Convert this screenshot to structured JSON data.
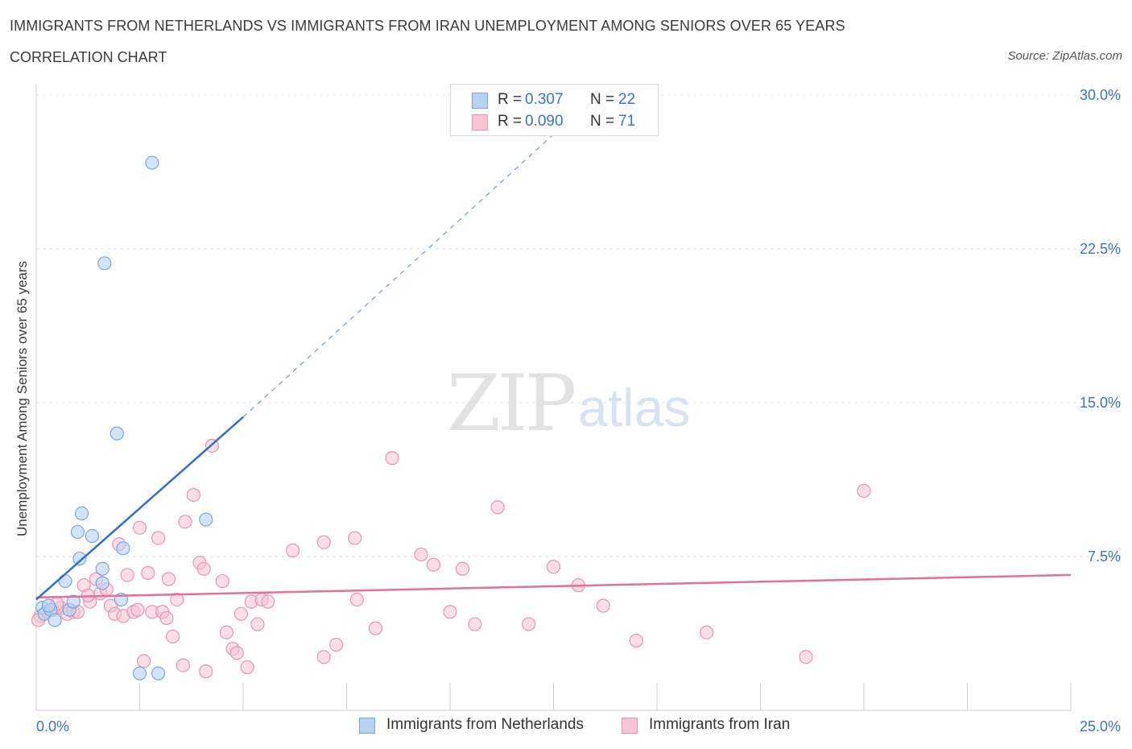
{
  "header": {
    "title": "IMMIGRANTS FROM NETHERLANDS VS IMMIGRANTS FROM IRAN UNEMPLOYMENT AMONG SENIORS OVER 65 YEARS",
    "subtitle": "CORRELATION CHART",
    "source": "Source: ZipAtlas.com"
  },
  "watermark": {
    "zip": "ZIP",
    "atlas": "atlas"
  },
  "legend_top": {
    "rows": [
      {
        "r_label": "R =",
        "r_value": "0.307",
        "n_label": "N =",
        "n_value": "22"
      },
      {
        "r_label": "R =",
        "r_value": "0.090",
        "n_label": "N =",
        "n_value": "71"
      }
    ]
  },
  "legend_bottom": {
    "items": [
      {
        "label": "Immigrants from Netherlands"
      },
      {
        "label": "Immigrants from Iran"
      }
    ]
  },
  "colors": {
    "netherlands_fill": "#b8d2f4",
    "netherlands_stroke": "#7aa6e0",
    "netherlands_line": "#2f6fcf",
    "iran_fill": "#f8c3d3",
    "iran_stroke": "#eb93b0",
    "iran_line": "#e46f98",
    "axis_text": "#3a73c8",
    "grid": "#e4e4e4"
  },
  "chart_data": {
    "type": "scatter",
    "title": "IMMIGRANTS FROM NETHERLANDS VS IMMIGRANTS FROM IRAN UNEMPLOYMENT AMONG SENIORS OVER 65 YEARS",
    "xlabel": "",
    "ylabel": "Unemployment Among Seniors over 65 years",
    "xlim": [
      0,
      25
    ],
    "ylim": [
      0,
      30
    ],
    "x_tick_labels": [
      "0.0%",
      "25.0%"
    ],
    "y_ticks": [
      7.5,
      15.0,
      22.5,
      30.0
    ],
    "y_tick_labels": [
      "7.5%",
      "15.0%",
      "22.5%",
      "30.0%"
    ],
    "x_minor_ticks": [
      0,
      2.5,
      5,
      7.5,
      10,
      12.5,
      15,
      17.5,
      20,
      22.5,
      25
    ],
    "grid": true,
    "legend_position": "top-center",
    "series": [
      {
        "name": "Immigrants from Netherlands",
        "R": 0.307,
        "N": 22,
        "trend": {
          "x0": 0,
          "y0": 5.4,
          "x_solid_end": 5.0,
          "y_solid_end": 14.3,
          "x_dash_end": 13.0,
          "y_dash_end": 29.0
        },
        "points": [
          [
            0.15,
            5.0
          ],
          [
            0.2,
            4.7
          ],
          [
            0.35,
            4.9
          ],
          [
            0.45,
            4.4
          ],
          [
            0.3,
            5.1
          ],
          [
            0.8,
            4.9
          ],
          [
            0.9,
            5.3
          ],
          [
            0.7,
            6.3
          ],
          [
            1.05,
            7.4
          ],
          [
            1.1,
            9.6
          ],
          [
            1.35,
            8.5
          ],
          [
            1.0,
            8.7
          ],
          [
            1.6,
            6.9
          ],
          [
            1.6,
            6.2
          ],
          [
            2.1,
            7.9
          ],
          [
            2.05,
            5.4
          ],
          [
            1.95,
            13.5
          ],
          [
            1.65,
            21.8
          ],
          [
            2.8,
            26.7
          ],
          [
            4.1,
            9.3
          ],
          [
            2.5,
            1.8
          ],
          [
            2.95,
            1.8
          ]
        ]
      },
      {
        "name": "Immigrants from Iran",
        "R": 0.09,
        "N": 71,
        "trend": {
          "x0": 0,
          "y0": 5.5,
          "x1": 25,
          "y1": 6.6
        },
        "points": [
          [
            0.1,
            4.6
          ],
          [
            0.25,
            4.8
          ],
          [
            0.4,
            4.9
          ],
          [
            0.6,
            5.0
          ],
          [
            0.75,
            4.7
          ],
          [
            0.9,
            4.8
          ],
          [
            1.0,
            4.8
          ],
          [
            1.15,
            6.1
          ],
          [
            1.3,
            5.3
          ],
          [
            1.45,
            6.4
          ],
          [
            1.55,
            5.7
          ],
          [
            1.7,
            5.9
          ],
          [
            1.8,
            5.1
          ],
          [
            1.9,
            4.7
          ],
          [
            2.0,
            8.1
          ],
          [
            2.1,
            4.6
          ],
          [
            2.2,
            6.6
          ],
          [
            2.35,
            4.8
          ],
          [
            2.5,
            8.9
          ],
          [
            2.6,
            2.4
          ],
          [
            2.7,
            6.7
          ],
          [
            2.8,
            4.8
          ],
          [
            2.95,
            8.4
          ],
          [
            3.05,
            4.8
          ],
          [
            3.15,
            4.5
          ],
          [
            3.2,
            6.4
          ],
          [
            3.3,
            3.6
          ],
          [
            3.4,
            5.4
          ],
          [
            3.55,
            2.2
          ],
          [
            3.6,
            9.2
          ],
          [
            3.8,
            10.5
          ],
          [
            3.95,
            7.2
          ],
          [
            4.05,
            6.9
          ],
          [
            4.1,
            1.9
          ],
          [
            4.25,
            12.9
          ],
          [
            4.5,
            6.3
          ],
          [
            4.6,
            3.8
          ],
          [
            4.75,
            3.0
          ],
          [
            4.85,
            2.8
          ],
          [
            4.95,
            4.7
          ],
          [
            5.1,
            2.1
          ],
          [
            5.2,
            5.3
          ],
          [
            5.35,
            4.2
          ],
          [
            5.45,
            5.4
          ],
          [
            5.6,
            5.3
          ],
          [
            6.2,
            7.8
          ],
          [
            6.95,
            8.2
          ],
          [
            6.95,
            2.6
          ],
          [
            7.25,
            3.2
          ],
          [
            7.7,
            8.4
          ],
          [
            7.75,
            5.4
          ],
          [
            8.2,
            4.0
          ],
          [
            8.6,
            12.3
          ],
          [
            9.3,
            7.6
          ],
          [
            9.6,
            7.1
          ],
          [
            10.0,
            4.8
          ],
          [
            10.3,
            6.9
          ],
          [
            10.6,
            4.2
          ],
          [
            11.15,
            9.9
          ],
          [
            11.9,
            4.2
          ],
          [
            12.5,
            7.0
          ],
          [
            13.1,
            6.1
          ],
          [
            13.7,
            5.1
          ],
          [
            14.5,
            3.4
          ],
          [
            16.2,
            3.8
          ],
          [
            18.6,
            2.6
          ],
          [
            20.0,
            10.7
          ],
          [
            0.05,
            4.4
          ],
          [
            0.5,
            5.2
          ],
          [
            1.25,
            5.6
          ],
          [
            2.45,
            4.9
          ]
        ]
      }
    ]
  }
}
